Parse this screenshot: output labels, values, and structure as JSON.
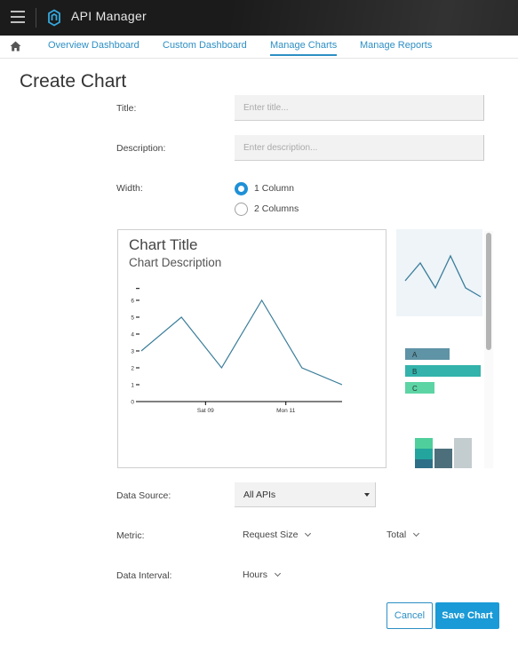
{
  "app": {
    "title": "API Manager"
  },
  "nav": {
    "items": [
      {
        "label": "Overview Dashboard",
        "active": false
      },
      {
        "label": "Custom Dashboard",
        "active": false
      },
      {
        "label": "Manage Charts",
        "active": true
      },
      {
        "label": "Manage Reports",
        "active": false
      }
    ]
  },
  "page": {
    "title": "Create Chart"
  },
  "form": {
    "title_label": "Title:",
    "title_placeholder": "Enter title...",
    "title_value": "",
    "description_label": "Description:",
    "description_placeholder": "Enter description...",
    "description_value": "",
    "width_label": "Width:",
    "width_options": [
      {
        "label": "1 Column",
        "checked": true
      },
      {
        "label": "2 Columns",
        "checked": false
      }
    ],
    "data_source_label": "Data Source:",
    "data_source_value": "All APIs",
    "metric_label": "Metric:",
    "metric_value": "Request Size",
    "metric_aggregate_value": "Total",
    "data_interval_label": "Data Interval:",
    "data_interval_value": "Hours"
  },
  "preview": {
    "title": "Chart Title",
    "description": "Chart Description"
  },
  "chart_data": {
    "type": "line",
    "x": [
      0,
      1,
      2,
      3,
      4,
      5
    ],
    "y": [
      3,
      5,
      2,
      6,
      2,
      1
    ],
    "x_tick_labels": [
      {
        "at": 1.6,
        "label": "Sat 09"
      },
      {
        "at": 3.6,
        "label": "Mon 11"
      }
    ],
    "y_ticks": [
      0,
      1,
      2,
      3,
      4,
      5,
      6
    ],
    "ylim": [
      0,
      7
    ],
    "color": "#3a7d9a"
  },
  "thumbnails": {
    "bar_labels": [
      "A",
      "B",
      "C"
    ]
  },
  "buttons": {
    "cancel": "Cancel",
    "save": "Save Chart"
  },
  "colors": {
    "accent": "#1a9ad6",
    "link": "#2d8fc4",
    "topbar": "#1b1b1b"
  }
}
